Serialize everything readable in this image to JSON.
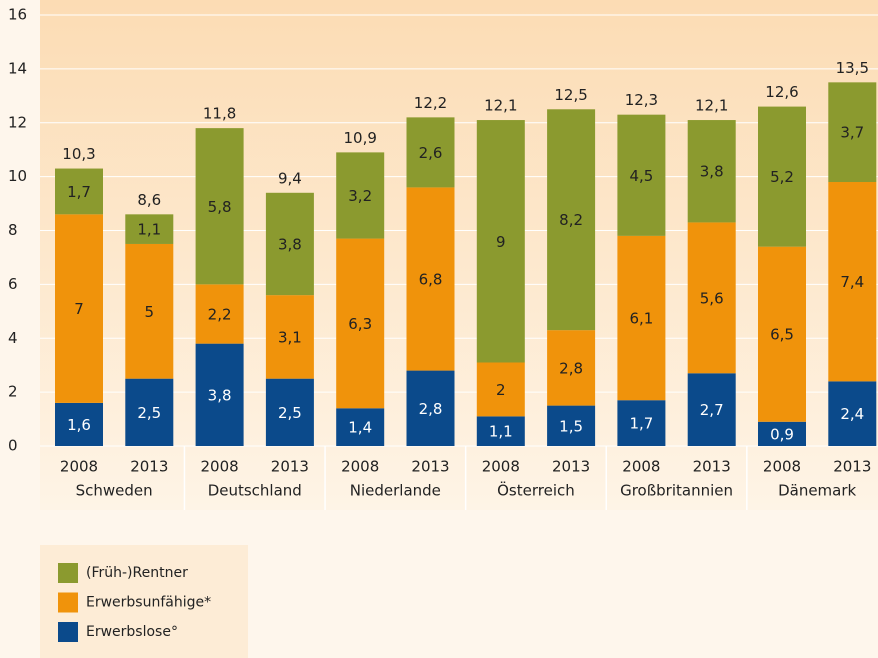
{
  "chart_data": {
    "type": "stacked-bar",
    "categories": [
      "2008",
      "2013",
      "2008",
      "2013",
      "2008",
      "2013",
      "2008",
      "2013",
      "2008",
      "2013",
      "2008",
      "2013"
    ],
    "groups": [
      "Schweden",
      "Deutschland",
      "Niederlande",
      "Österreich",
      "Großbritannien",
      "Dänemark"
    ],
    "series": [
      {
        "name": "Erwerbslose°",
        "color": "#0b4a8b",
        "values": [
          1.6,
          2.5,
          3.8,
          2.5,
          1.4,
          2.8,
          1.1,
          1.5,
          1.7,
          2.7,
          0.9,
          2.4
        ],
        "value_labels": [
          "1,6",
          "2,5",
          "3,8",
          "2,5",
          "1,4",
          "2,8",
          "1,1",
          "1,5",
          "1,7",
          "2,7",
          "0,9",
          "2,4"
        ]
      },
      {
        "name": "Erwerbsunfähige*",
        "color": "#f0930b",
        "values": [
          7,
          5,
          2.2,
          3.1,
          6.3,
          6.8,
          2,
          2.8,
          6.1,
          5.6,
          6.5,
          7.4
        ],
        "value_labels": [
          "7",
          "5",
          "2,2",
          "3,1",
          "6,3",
          "6,8",
          "2",
          "2,8",
          "6,1",
          "5,6",
          "6,5",
          "7,4"
        ]
      },
      {
        "name": "(Früh-)Rentner",
        "color": "#8b9a2f",
        "values": [
          1.7,
          1.1,
          5.8,
          3.8,
          3.2,
          2.6,
          9,
          8.2,
          4.5,
          3.8,
          5.2,
          3.7
        ],
        "value_labels": [
          "1,7",
          "1,1",
          "5,8",
          "3,8",
          "3,2",
          "2,6",
          "9",
          "8,2",
          "4,5",
          "3,8",
          "5,2",
          "3,7"
        ]
      }
    ],
    "totals": [
      10.3,
      8.6,
      11.8,
      9.4,
      10.9,
      12.2,
      12.1,
      12.5,
      12.3,
      12.1,
      12.6,
      13.5
    ],
    "total_labels": [
      "10,3",
      "8,6",
      "11,8",
      "9,4",
      "10,9",
      "12,2",
      "12,1",
      "12,5",
      "12,3",
      "12,1",
      "12,6",
      "13,5"
    ],
    "ylim": [
      0,
      16
    ],
    "yticks": [
      0,
      2,
      4,
      6,
      8,
      10,
      12,
      14,
      16
    ],
    "grid": true
  }
}
